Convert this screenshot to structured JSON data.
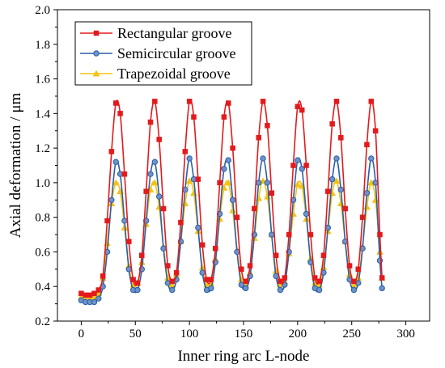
{
  "chart_data": {
    "type": "line",
    "title": "",
    "xlabel": "Inner ring arc L-node",
    "ylabel": "Axial deformation / μm",
    "xlim": [
      -22,
      322
    ],
    "ylim": [
      0.2,
      2.0
    ],
    "xticks": [
      0,
      50,
      100,
      150,
      200,
      250,
      300
    ],
    "yticks": [
      0.2,
      0.4,
      0.6,
      0.8,
      1.0,
      1.2,
      1.4,
      1.6,
      1.8,
      2.0
    ],
    "xtick_labels": [
      "0",
      "50",
      "100",
      "150",
      "200",
      "250",
      "300"
    ],
    "ytick_labels": [
      "0.2",
      "0.4",
      "0.6",
      "0.8",
      "1.0",
      "1.2",
      "1.4",
      "1.6",
      "1.8",
      "2.0"
    ],
    "grid": false,
    "legend_position": "top-left",
    "period": 32.5,
    "series": [
      {
        "name": "Rectangular groove",
        "color": "#e31a1c",
        "marker": "square",
        "x": [
          0,
          4,
          8,
          12,
          16,
          20,
          24,
          28,
          32,
          36,
          40,
          44,
          48,
          52,
          56,
          60,
          64,
          68,
          72,
          76,
          80,
          84,
          88,
          92,
          96,
          100,
          104,
          108,
          112,
          116,
          120,
          124,
          128,
          132,
          136,
          140,
          144,
          148,
          152,
          156,
          160,
          164,
          168,
          172,
          176,
          180,
          184,
          188,
          192,
          196,
          200,
          204,
          208,
          212,
          216,
          220,
          224,
          228,
          232,
          236,
          240,
          244,
          248,
          252,
          256,
          260,
          264,
          268,
          272,
          276,
          278
        ],
        "y": [
          0.36,
          0.35,
          0.35,
          0.36,
          0.38,
          0.46,
          0.78,
          1.18,
          1.46,
          1.4,
          1.05,
          0.66,
          0.44,
          0.42,
          0.58,
          0.95,
          1.35,
          1.47,
          1.25,
          0.85,
          0.52,
          0.43,
          0.48,
          0.77,
          1.18,
          1.47,
          1.38,
          1.02,
          0.64,
          0.44,
          0.44,
          0.62,
          1.0,
          1.38,
          1.46,
          1.2,
          0.8,
          0.5,
          0.43,
          0.52,
          0.85,
          1.26,
          1.47,
          1.33,
          0.94,
          0.58,
          0.43,
          0.45,
          0.7,
          1.1,
          1.44,
          1.42,
          1.1,
          0.7,
          0.45,
          0.43,
          0.58,
          0.95,
          1.34,
          1.47,
          1.26,
          0.85,
          0.52,
          0.43,
          0.5,
          0.8,
          1.22,
          1.47,
          1.3,
          0.7,
          0.45
        ]
      },
      {
        "name": "Semicircular groove",
        "color": "#2c5fa8",
        "marker": "circle",
        "x": [
          0,
          4,
          8,
          12,
          16,
          20,
          24,
          28,
          32,
          36,
          40,
          44,
          48,
          52,
          56,
          60,
          64,
          68,
          72,
          76,
          80,
          84,
          88,
          92,
          96,
          100,
          104,
          108,
          112,
          116,
          120,
          124,
          128,
          132,
          136,
          140,
          144,
          148,
          152,
          156,
          160,
          164,
          168,
          172,
          176,
          180,
          184,
          188,
          192,
          196,
          200,
          204,
          208,
          212,
          216,
          220,
          224,
          228,
          232,
          236,
          240,
          244,
          248,
          252,
          256,
          260,
          264,
          268,
          272,
          276,
          278
        ],
        "y": [
          0.32,
          0.31,
          0.31,
          0.31,
          0.33,
          0.4,
          0.6,
          0.9,
          1.12,
          1.05,
          0.78,
          0.5,
          0.38,
          0.38,
          0.5,
          0.78,
          1.05,
          1.12,
          0.92,
          0.62,
          0.42,
          0.38,
          0.44,
          0.66,
          0.96,
          1.14,
          1.02,
          0.74,
          0.48,
          0.38,
          0.39,
          0.54,
          0.82,
          1.08,
          1.13,
          0.9,
          0.6,
          0.41,
          0.39,
          0.46,
          0.7,
          1.0,
          1.14,
          1.0,
          0.7,
          0.46,
          0.38,
          0.41,
          0.6,
          0.9,
          1.13,
          1.08,
          0.82,
          0.54,
          0.39,
          0.38,
          0.48,
          0.74,
          1.02,
          1.14,
          0.96,
          0.66,
          0.44,
          0.38,
          0.42,
          0.62,
          0.94,
          1.14,
          1.0,
          0.55,
          0.39
        ]
      },
      {
        "name": "Trapezoidal groove",
        "color": "#f5c211",
        "marker": "triangle",
        "x": [
          0,
          4,
          8,
          12,
          16,
          20,
          24,
          28,
          32,
          36,
          40,
          44,
          48,
          52,
          56,
          60,
          64,
          68,
          72,
          76,
          80,
          84,
          88,
          92,
          96,
          100,
          104,
          108,
          112,
          116,
          120,
          124,
          128,
          132,
          136,
          140,
          144,
          148,
          152,
          156,
          160,
          164,
          168,
          172,
          176,
          180,
          184,
          188,
          192,
          196,
          200,
          204,
          208,
          212,
          216,
          220,
          224,
          228,
          232,
          236,
          240,
          244,
          248,
          252,
          256,
          260,
          264,
          268,
          272,
          276,
          278
        ],
        "y": [
          0.34,
          0.33,
          0.33,
          0.34,
          0.36,
          0.45,
          0.65,
          0.88,
          1.0,
          0.95,
          0.74,
          0.52,
          0.41,
          0.42,
          0.54,
          0.76,
          0.96,
          1.0,
          0.86,
          0.63,
          0.45,
          0.41,
          0.47,
          0.66,
          0.88,
          1.01,
          0.94,
          0.72,
          0.51,
          0.41,
          0.42,
          0.56,
          0.79,
          0.97,
          1.0,
          0.84,
          0.61,
          0.44,
          0.41,
          0.48,
          0.68,
          0.91,
          1.01,
          0.92,
          0.7,
          0.49,
          0.41,
          0.43,
          0.59,
          0.82,
          0.99,
          0.98,
          0.79,
          0.56,
          0.42,
          0.41,
          0.51,
          0.72,
          0.94,
          1.01,
          0.88,
          0.66,
          0.47,
          0.41,
          0.45,
          0.63,
          0.86,
          1.0,
          0.9,
          0.6,
          0.45
        ]
      }
    ]
  }
}
